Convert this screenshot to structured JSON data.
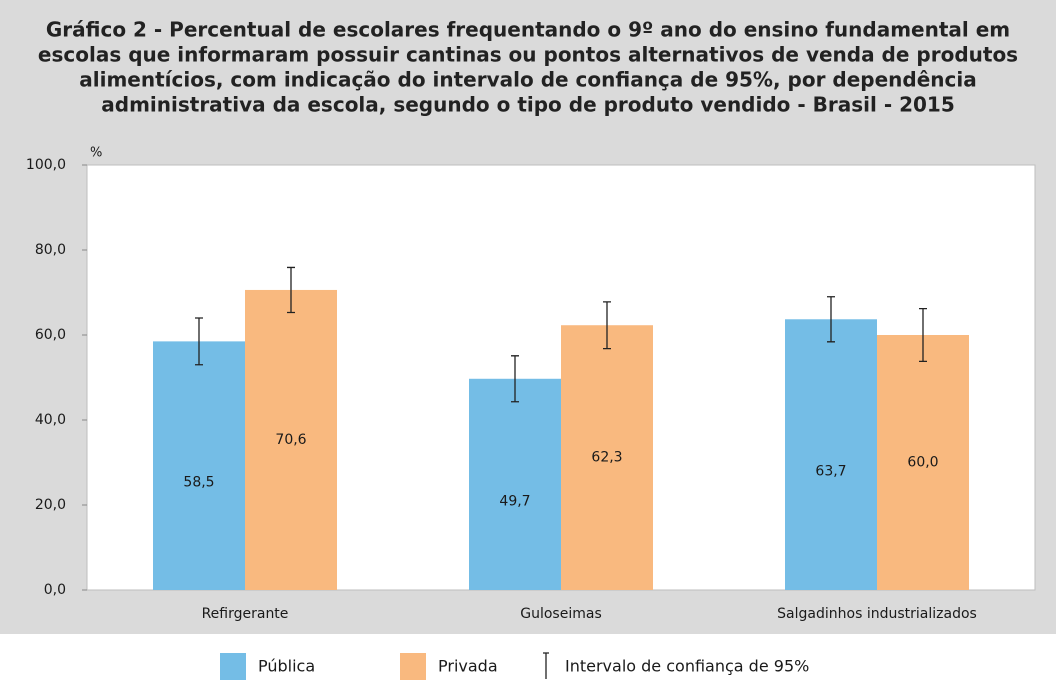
{
  "chart_data": {
    "type": "bar",
    "title": [
      "Gráfico 2 - Percentual de escolares frequentando o 9º ano do ensino fundamental em",
      "escolas que informaram possuir cantinas ou pontos alternativos de venda de produtos",
      "alimentícios, com indicação do intervalo de confiança de 95%, por dependência",
      "administrativa da escola, segundo o tipo de produto vendido - Brasil - 2015"
    ],
    "y_label": "%",
    "categories": [
      "Refirgerante",
      "Guloseimas",
      "Salgadinhos industrializados"
    ],
    "series": [
      {
        "name": "Pública",
        "color": "#74bde6",
        "values": [
          58.5,
          49.7,
          63.7
        ],
        "value_labels": [
          "58,5",
          "49,7",
          "63,7"
        ],
        "errors": [
          5.5,
          5.4,
          5.3
        ]
      },
      {
        "name": "Privada",
        "color": "#f9b97f",
        "values": [
          70.6,
          62.3,
          60.0
        ],
        "value_labels": [
          "70,6",
          "62,3",
          "60,0"
        ],
        "errors": [
          5.3,
          5.5,
          6.2
        ]
      }
    ],
    "error_bar_label": "Intervalo de confiança de 95%",
    "ylim": [
      0,
      100
    ],
    "yticks": [
      {
        "value": 0,
        "label": "0,0"
      },
      {
        "value": 20,
        "label": "20,0"
      },
      {
        "value": 40,
        "label": "40,0"
      },
      {
        "value": 60,
        "label": "60,0"
      },
      {
        "value": 80,
        "label": "80,0"
      },
      {
        "value": 100,
        "label": "100,0"
      }
    ]
  }
}
